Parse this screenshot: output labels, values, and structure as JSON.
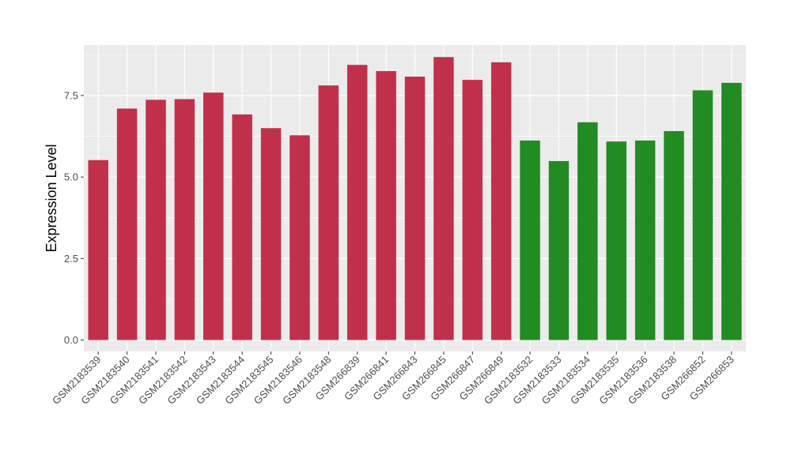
{
  "chart_data": {
    "type": "bar",
    "title": "",
    "xlabel": "",
    "ylabel": "Expression Level",
    "ylim": [
      -0.35,
      9.05
    ],
    "yticks": [
      0.0,
      2.5,
      5.0,
      7.5
    ],
    "ytick_labels": [
      "0.0",
      "2.5",
      "5.0",
      "7.5"
    ],
    "grid": true,
    "legend": "none",
    "colors": {
      "group_a": "#C1304A",
      "group_b": "#228B22",
      "panel_bg": "#EBEBEB",
      "grid": "#FFFFFF"
    },
    "categories": [
      "GSM2183539",
      "GSM2183540",
      "GSM2183541",
      "GSM2183542",
      "GSM2183543",
      "GSM2183544",
      "GSM2183545",
      "GSM2183546",
      "GSM2183548",
      "GSM266839",
      "GSM266841",
      "GSM266843",
      "GSM266845",
      "GSM266847",
      "GSM266849",
      "GSM2183532",
      "GSM2183533",
      "GSM2183534",
      "GSM2183535",
      "GSM2183536",
      "GSM2183538",
      "GSM266852",
      "GSM266853"
    ],
    "values": [
      5.52,
      7.1,
      7.37,
      7.39,
      7.59,
      6.92,
      6.5,
      6.28,
      7.81,
      8.44,
      8.25,
      8.08,
      8.68,
      7.98,
      8.52,
      6.12,
      5.49,
      6.68,
      6.09,
      6.12,
      6.41,
      7.66,
      7.89
    ],
    "bar_groups": [
      "a",
      "a",
      "a",
      "a",
      "a",
      "a",
      "a",
      "a",
      "a",
      "a",
      "a",
      "a",
      "a",
      "a",
      "a",
      "b",
      "b",
      "b",
      "b",
      "b",
      "b",
      "b",
      "b"
    ]
  }
}
